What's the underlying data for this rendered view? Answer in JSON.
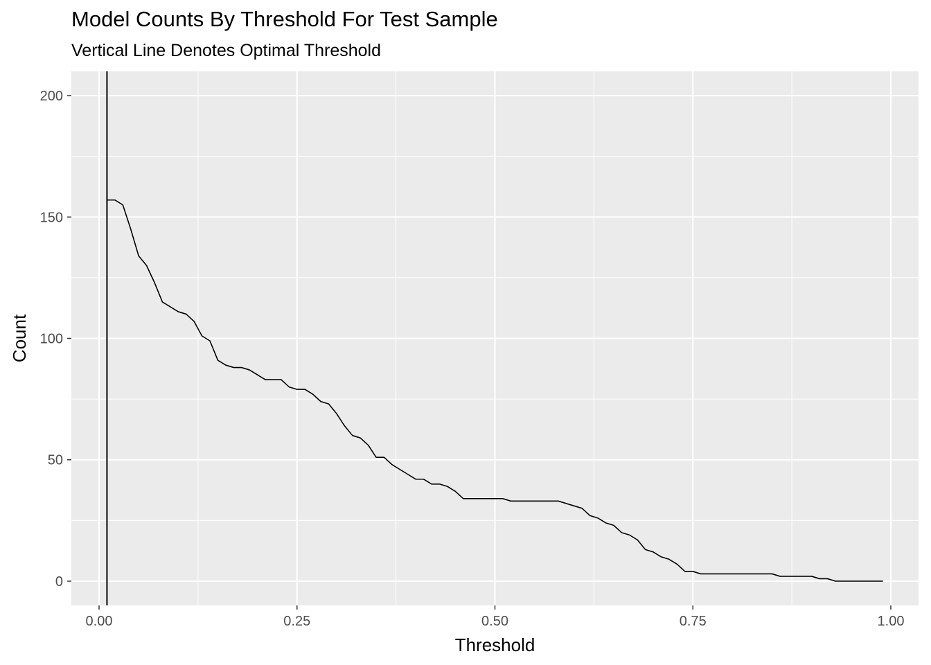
{
  "chart_data": {
    "type": "line",
    "title": "Model Counts By Threshold For Test Sample",
    "subtitle": "Vertical Line Denotes Optimal Threshold",
    "xlabel": "Threshold",
    "ylabel": "Count",
    "xlim": [
      -0.035,
      1.035
    ],
    "ylim": [
      -10,
      210
    ],
    "x_ticks": [
      0.0,
      0.25,
      0.5,
      0.75,
      1.0
    ],
    "x_tick_labels": [
      "0.00",
      "0.25",
      "0.50",
      "0.75",
      "1.00"
    ],
    "y_ticks": [
      0,
      50,
      100,
      150,
      200
    ],
    "y_tick_labels": [
      "0",
      "50",
      "100",
      "150",
      "200"
    ],
    "grid": true,
    "vline_x": 0.01,
    "colors": {
      "panel": "#ebebeb",
      "grid": "#ffffff",
      "line": "#000000"
    },
    "series": [
      {
        "x": [
          0.01,
          0.02,
          0.03,
          0.04,
          0.05,
          0.06,
          0.07,
          0.08,
          0.09,
          0.1,
          0.11,
          0.12,
          0.13,
          0.14,
          0.15,
          0.16,
          0.17,
          0.18,
          0.19,
          0.2,
          0.21,
          0.22,
          0.23,
          0.24,
          0.25,
          0.26,
          0.27,
          0.28,
          0.29,
          0.3,
          0.31,
          0.32,
          0.33,
          0.34,
          0.35,
          0.36,
          0.37,
          0.38,
          0.39,
          0.4,
          0.41,
          0.42,
          0.43,
          0.44,
          0.45,
          0.46,
          0.47,
          0.48,
          0.49,
          0.5,
          0.51,
          0.52,
          0.53,
          0.54,
          0.55,
          0.56,
          0.57,
          0.58,
          0.59,
          0.6,
          0.61,
          0.62,
          0.63,
          0.64,
          0.65,
          0.66,
          0.67,
          0.68,
          0.69,
          0.7,
          0.71,
          0.72,
          0.73,
          0.74,
          0.75,
          0.76,
          0.77,
          0.78,
          0.79,
          0.8,
          0.81,
          0.82,
          0.83,
          0.84,
          0.85,
          0.86,
          0.87,
          0.88,
          0.89,
          0.9,
          0.91,
          0.92,
          0.93,
          0.94,
          0.95,
          0.96,
          0.97,
          0.98,
          0.99
        ],
        "y": [
          157,
          157,
          155,
          145,
          134,
          130,
          123,
          115,
          113,
          111,
          110,
          107,
          101,
          99,
          91,
          89,
          88,
          88,
          87,
          85,
          83,
          83,
          83,
          80,
          79,
          79,
          77,
          74,
          73,
          69,
          64,
          60,
          59,
          56,
          51,
          51,
          48,
          46,
          44,
          42,
          42,
          40,
          40,
          39,
          37,
          34,
          34,
          34,
          34,
          34,
          34,
          33,
          33,
          33,
          33,
          33,
          33,
          33,
          32,
          31,
          30,
          27,
          26,
          24,
          23,
          20,
          19,
          17,
          13,
          12,
          10,
          9,
          7,
          4,
          4,
          3,
          3,
          3,
          3,
          3,
          3,
          3,
          3,
          3,
          3,
          2,
          2,
          2,
          2,
          2,
          1,
          1,
          0,
          0,
          0,
          0,
          0,
          0,
          0
        ]
      }
    ]
  }
}
